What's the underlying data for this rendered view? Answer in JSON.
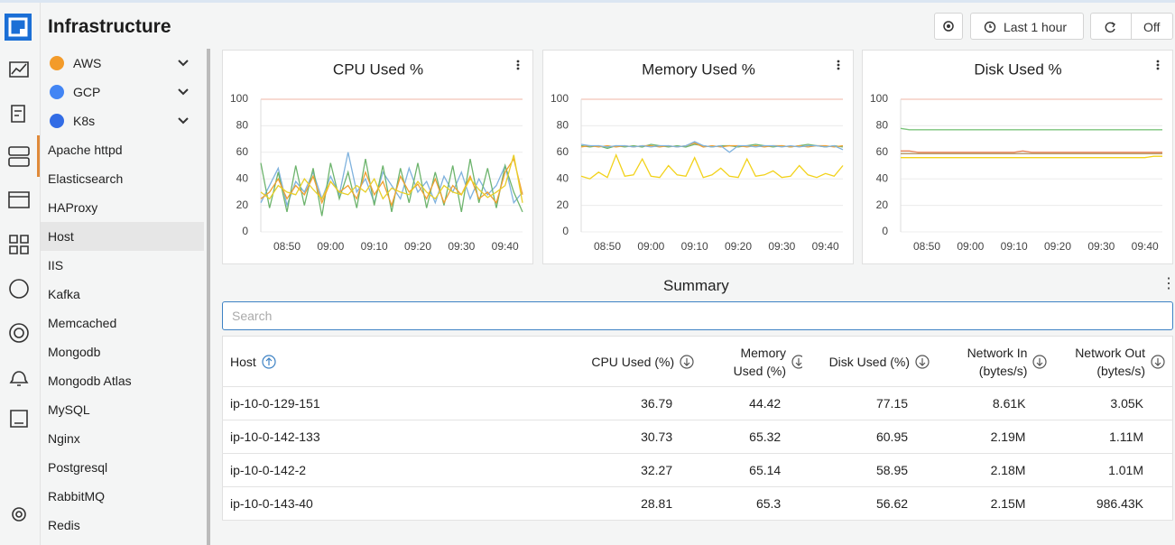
{
  "header": {
    "title": "Infrastructure",
    "buttons": [
      "Last 1 hour",
      "Off"
    ]
  },
  "sidebar": {
    "items": [
      "AWS",
      "GCP",
      "K8s",
      "Apache httpd",
      "Elasticsearch",
      "HAProxy",
      "Host",
      "IIS",
      "Kafka",
      "Memcached",
      "Mongodb",
      "Mongodb Atlas",
      "MySQL",
      "Nginx",
      "Postgresql",
      "RabbitMQ",
      "Redis"
    ]
  },
  "chart_data": [
    {
      "type": "line",
      "title": "CPU Used %",
      "categories": [
        null,
        null,
        null,
        "08:50",
        null,
        null,
        null,
        null,
        "09:00",
        null,
        null,
        null,
        null,
        "09:10",
        null,
        null,
        null,
        null,
        "09:20",
        null,
        null,
        null,
        null,
        "09:30",
        null,
        null,
        null,
        null,
        "09:40",
        null,
        null
      ],
      "ylim": [
        0,
        100
      ],
      "yticks": [
        0,
        20,
        40,
        60,
        80,
        100
      ],
      "grid": true,
      "series": [
        {
          "color": "#7fb2de",
          "values": [
            22,
            35,
            48,
            20,
            38,
            30,
            45,
            25,
            42,
            28,
            60,
            30,
            40,
            22,
            45,
            35,
            25,
            48,
            30,
            38,
            22,
            42,
            30,
            45,
            25,
            40,
            28,
            35,
            50,
            22,
            30
          ]
        },
        {
          "color": "#6db46d",
          "values": [
            52,
            18,
            45,
            15,
            50,
            20,
            48,
            12,
            52,
            25,
            45,
            18,
            55,
            20,
            50,
            15,
            48,
            22,
            52,
            18,
            45,
            20,
            50,
            15,
            55,
            22,
            48,
            18,
            50,
            30,
            15
          ]
        },
        {
          "color": "#f0a030",
          "values": [
            25,
            30,
            40,
            25,
            35,
            28,
            42,
            22,
            38,
            30,
            35,
            25,
            45,
            28,
            38,
            20,
            42,
            30,
            36,
            25,
            40,
            22,
            35,
            28,
            42,
            25,
            30,
            22,
            45,
            55,
            28
          ]
        },
        {
          "color": "#e8cf2a",
          "values": [
            30,
            25,
            35,
            30,
            28,
            40,
            32,
            25,
            38,
            30,
            28,
            35,
            30,
            40,
            25,
            33,
            30,
            28,
            38,
            30,
            25,
            35,
            30,
            28,
            40,
            32,
            26,
            30,
            35,
            58,
            22
          ]
        }
      ]
    },
    {
      "type": "line",
      "title": "Memory Used %",
      "categories": [
        null,
        null,
        null,
        "08:50",
        null,
        null,
        null,
        null,
        "09:00",
        null,
        null,
        null,
        null,
        "09:10",
        null,
        null,
        null,
        null,
        "09:20",
        null,
        null,
        null,
        null,
        "09:30",
        null,
        null,
        null,
        null,
        "09:40",
        null,
        null
      ],
      "ylim": [
        0,
        100
      ],
      "yticks": [
        0,
        20,
        40,
        60,
        80,
        100
      ],
      "grid": true,
      "series": [
        {
          "color": "#6db46d",
          "values": [
            65,
            64,
            65,
            63,
            65,
            64,
            65,
            64,
            66,
            65,
            64,
            65,
            64,
            66,
            65,
            64,
            65,
            65,
            64,
            65,
            66,
            65,
            64,
            65,
            64,
            65,
            66,
            65,
            64,
            65,
            64
          ]
        },
        {
          "color": "#f0a030",
          "values": [
            64,
            65,
            64,
            65,
            64,
            65,
            64,
            65,
            65,
            64,
            65,
            64,
            65,
            67,
            64,
            65,
            64,
            65,
            65,
            64,
            65,
            64,
            65,
            65,
            64,
            65,
            64,
            65,
            65,
            64,
            65
          ]
        },
        {
          "color": "#7fb2de",
          "values": [
            66,
            65,
            65,
            64,
            65,
            65,
            64,
            65,
            64,
            65,
            65,
            64,
            65,
            68,
            65,
            64,
            65,
            60,
            65,
            65,
            64,
            65,
            65,
            64,
            65,
            64,
            65,
            65,
            64,
            65,
            62
          ]
        },
        {
          "color": "#f2d21a",
          "values": [
            42,
            40,
            45,
            41,
            58,
            42,
            43,
            55,
            42,
            41,
            50,
            43,
            42,
            56,
            41,
            43,
            48,
            42,
            41,
            55,
            42,
            43,
            46,
            41,
            42,
            50,
            43,
            41,
            44,
            42,
            50
          ]
        }
      ]
    },
    {
      "type": "line",
      "title": "Disk Used %",
      "categories": [
        null,
        null,
        null,
        "08:50",
        null,
        null,
        null,
        null,
        "09:00",
        null,
        null,
        null,
        null,
        "09:10",
        null,
        null,
        null,
        null,
        "09:20",
        null,
        null,
        null,
        null,
        "09:30",
        null,
        null,
        null,
        null,
        "09:40",
        null,
        null
      ],
      "ylim": [
        0,
        100
      ],
      "yticks": [
        0,
        20,
        40,
        60,
        80,
        100
      ],
      "grid": true,
      "series": [
        {
          "color": "#7cc47c",
          "values": [
            78,
            77,
            77,
            77,
            77,
            77,
            77,
            77,
            77,
            77,
            77,
            77,
            77,
            77,
            77,
            77,
            77,
            77,
            77,
            77,
            77,
            77,
            77,
            77,
            77,
            77,
            77,
            77,
            77,
            77,
            77
          ]
        },
        {
          "color": "#e8845a",
          "values": [
            61,
            61,
            60,
            60,
            60,
            60,
            60,
            60,
            60,
            60,
            60,
            60,
            60,
            60,
            61,
            60,
            60,
            60,
            60,
            60,
            60,
            60,
            60,
            60,
            60,
            60,
            60,
            60,
            60,
            60,
            60
          ]
        },
        {
          "color": "#b89a6a",
          "values": [
            59,
            59,
            59,
            59,
            59,
            59,
            59,
            59,
            59,
            59,
            59,
            59,
            59,
            59,
            59,
            59,
            59,
            59,
            59,
            59,
            59,
            59,
            59,
            59,
            59,
            59,
            59,
            59,
            59,
            59,
            59
          ]
        },
        {
          "color": "#f2d21a",
          "values": [
            56,
            56,
            56,
            56,
            56,
            56,
            56,
            56,
            56,
            56,
            56,
            56,
            56,
            56,
            56,
            56,
            56,
            56,
            56,
            56,
            56,
            56,
            56,
            56,
            56,
            56,
            56,
            56,
            56,
            57,
            57
          ]
        }
      ]
    }
  ],
  "summary": {
    "title": "Summary",
    "search_placeholder": "Search",
    "columns": [
      "Host",
      "CPU Used (%)",
      "Memory Used (%)",
      "Disk Used (%)",
      "Network In (bytes/s)",
      "Network Out (bytes/s)"
    ],
    "rows": [
      [
        "ip-10-0-129-151",
        "36.79",
        "44.42",
        "77.15",
        "8.61K",
        "3.05K"
      ],
      [
        "ip-10-0-142-133",
        "30.73",
        "65.32",
        "60.95",
        "2.19M",
        "1.11M"
      ],
      [
        "ip-10-0-142-2",
        "32.27",
        "65.14",
        "58.95",
        "2.18M",
        "1.01M"
      ],
      [
        "ip-10-0-143-40",
        "28.81",
        "65.3",
        "56.62",
        "2.15M",
        "986.43K"
      ]
    ]
  }
}
